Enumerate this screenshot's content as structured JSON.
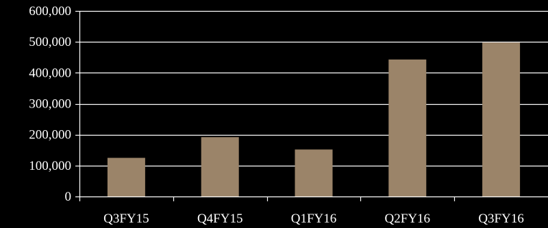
{
  "chart_data": {
    "type": "bar",
    "categories": [
      "Q3FY15",
      "Q4FY15",
      "Q1FY16",
      "Q2FY16",
      "Q3FY16"
    ],
    "values": [
      125000,
      192000,
      152000,
      443000,
      498000
    ],
    "ylim": [
      0,
      600000
    ],
    "yticks": [
      0,
      100000,
      200000,
      300000,
      400000,
      500000,
      600000
    ],
    "ytick_labels": [
      "0",
      "100,000",
      "200,000",
      "300,000",
      "400,000",
      "500,000",
      "600,000"
    ],
    "grid": true,
    "legend": "none",
    "colors": {
      "background": "#000000",
      "bar": "#9b8469",
      "grid": "#ffffff",
      "axis": "#ffffff",
      "text": "#ffffff"
    }
  }
}
